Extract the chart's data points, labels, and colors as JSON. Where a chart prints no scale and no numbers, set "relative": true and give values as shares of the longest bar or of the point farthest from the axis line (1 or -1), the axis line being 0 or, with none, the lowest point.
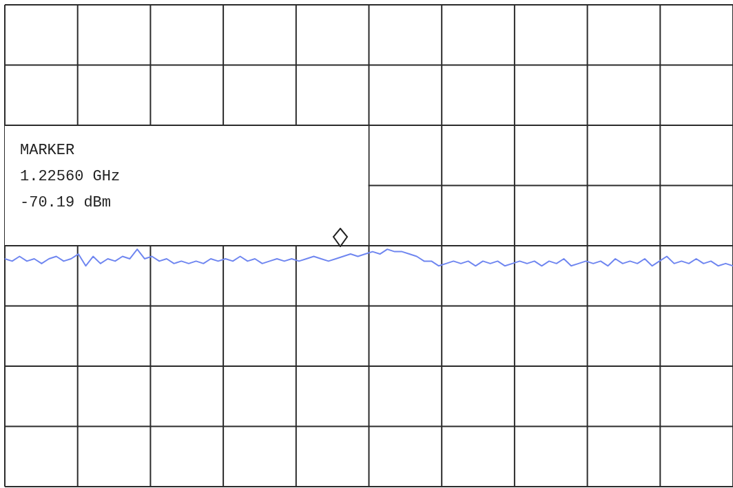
{
  "chart_data": {
    "type": "line",
    "relative": true,
    "grid": true,
    "legend": false,
    "marker": "none",
    "line_style": "solid",
    "annotations": [
      "MARKER",
      "1.22560 GHz",
      "-70.19 dBm"
    ],
    "categories": [
      null,
      null,
      null,
      null,
      null,
      null,
      null,
      null,
      null,
      null,
      null,
      null,
      null,
      null,
      null,
      null,
      null,
      null,
      null,
      null,
      null,
      null,
      null,
      null,
      null,
      null,
      null,
      null,
      null,
      null,
      null,
      null,
      null,
      null,
      null,
      null,
      null,
      null,
      null,
      null,
      null,
      null,
      null,
      null,
      null,
      null,
      null,
      null,
      null,
      null,
      null,
      null,
      null,
      null,
      null,
      null,
      null,
      null,
      null,
      null,
      null,
      null,
      null,
      null,
      null,
      null,
      null,
      null,
      null,
      null,
      null,
      null,
      null,
      null,
      null,
      null,
      null,
      null,
      null,
      null,
      null,
      null,
      null,
      null,
      null,
      null,
      null,
      null,
      null,
      null,
      null,
      null,
      null,
      null,
      null,
      null,
      null,
      null,
      null,
      null
    ],
    "series": [
      {
        "color": "#6f86f0",
        "values": [
          0.96,
          0.95,
          0.97,
          0.95,
          0.96,
          0.94,
          0.96,
          0.97,
          0.95,
          0.96,
          0.98,
          0.93,
          0.97,
          0.94,
          0.96,
          0.95,
          0.97,
          0.96,
          1.0,
          0.96,
          0.97,
          0.95,
          0.96,
          0.94,
          0.95,
          0.94,
          0.95,
          0.94,
          0.96,
          0.95,
          0.96,
          0.95,
          0.97,
          0.95,
          0.96,
          0.94,
          0.95,
          0.96,
          0.95,
          0.96,
          0.95,
          0.96,
          0.97,
          0.96,
          0.95,
          0.96,
          0.97,
          0.98,
          0.97,
          0.98,
          0.99,
          0.98,
          1.0,
          0.99,
          0.99,
          0.98,
          0.97,
          0.95,
          0.95,
          0.93,
          0.94,
          0.95,
          0.94,
          0.95,
          0.93,
          0.95,
          0.94,
          0.95,
          0.93,
          0.94,
          0.95,
          0.94,
          0.95,
          0.93,
          0.95,
          0.94,
          0.96,
          0.93,
          0.94,
          0.95,
          0.94,
          0.95,
          0.93,
          0.96,
          0.94,
          0.95,
          0.94,
          0.96,
          0.93,
          0.95,
          0.97,
          0.94,
          0.95,
          0.94,
          0.96,
          0.94,
          0.95,
          0.93,
          0.94,
          0.93
        ]
      }
    ]
  }
}
